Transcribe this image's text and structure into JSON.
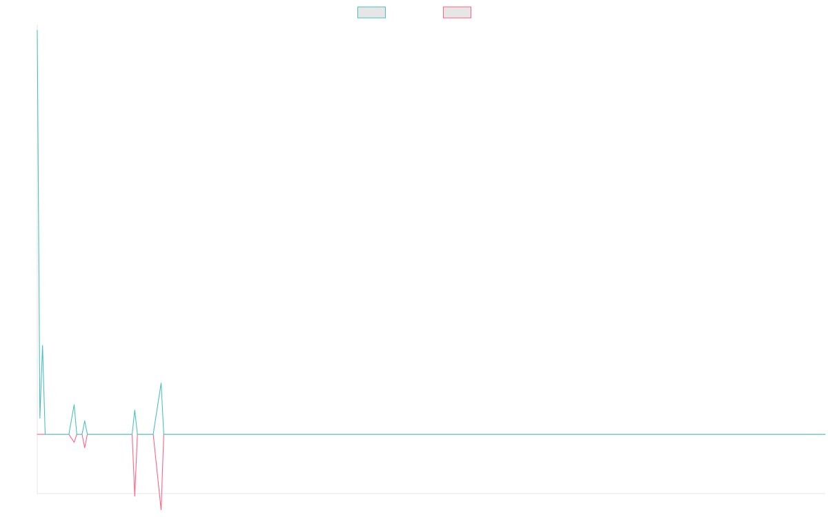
{
  "chart_data": {
    "type": "line",
    "title": "",
    "xlabel": "",
    "ylabel": "",
    "legend_position": "top-center",
    "grid": false,
    "x_count": 300,
    "ylim": [
      -22,
      152
    ],
    "series": [
      {
        "color": "#4bc0c0",
        "points": [
          [
            0,
            150
          ],
          [
            1,
            6
          ],
          [
            2,
            33
          ],
          [
            3,
            0
          ],
          [
            4,
            0
          ],
          [
            5,
            0
          ],
          [
            8,
            0
          ],
          [
            12,
            0
          ],
          [
            14,
            11
          ],
          [
            15,
            0
          ],
          [
            16,
            0
          ],
          [
            17,
            0
          ],
          [
            18,
            5
          ],
          [
            19,
            0
          ],
          [
            20,
            0
          ],
          [
            21,
            0
          ],
          [
            22,
            0
          ],
          [
            23,
            0
          ],
          [
            24,
            0
          ],
          [
            25,
            0
          ],
          [
            26,
            0
          ],
          [
            27,
            0
          ],
          [
            28,
            0
          ],
          [
            29,
            0
          ],
          [
            30,
            0
          ],
          [
            31,
            0
          ],
          [
            33,
            0
          ],
          [
            36,
            0
          ],
          [
            37,
            9
          ],
          [
            38,
            0
          ],
          [
            39,
            0
          ],
          [
            40,
            0
          ],
          [
            41,
            0
          ],
          [
            42,
            0
          ],
          [
            43,
            0
          ],
          [
            44,
            0
          ],
          [
            47,
            19
          ],
          [
            48,
            0
          ],
          [
            49,
            0
          ],
          [
            50,
            0
          ],
          [
            51,
            0
          ],
          [
            52,
            0
          ],
          [
            53,
            0
          ],
          [
            54,
            0
          ],
          [
            58,
            0
          ],
          [
            63,
            0
          ],
          [
            72,
            0
          ],
          [
            82,
            0
          ],
          [
            95,
            0
          ],
          [
            110,
            0
          ],
          [
            125,
            0
          ],
          [
            140,
            0
          ],
          [
            146,
            0
          ],
          [
            153,
            0
          ],
          [
            160,
            0
          ],
          [
            166,
            0
          ],
          [
            172,
            0
          ],
          [
            177,
            0
          ],
          [
            178,
            0
          ],
          [
            179,
            0
          ],
          [
            180,
            0
          ],
          [
            181,
            0
          ],
          [
            182,
            0
          ],
          [
            183,
            0
          ],
          [
            184,
            0
          ],
          [
            185,
            0
          ],
          [
            190,
            0
          ],
          [
            196,
            0
          ],
          [
            197,
            0
          ],
          [
            198,
            0
          ],
          [
            204,
            0
          ],
          [
            205,
            0
          ],
          [
            208,
            0
          ],
          [
            209,
            0
          ],
          [
            210,
            0
          ],
          [
            211,
            0
          ],
          [
            212,
            0
          ],
          [
            213,
            0
          ],
          [
            214,
            0
          ],
          [
            215,
            0
          ],
          [
            216,
            0
          ],
          [
            217,
            0
          ],
          [
            218,
            0
          ],
          [
            219,
            0
          ],
          [
            220,
            0
          ],
          [
            221,
            0
          ],
          [
            222,
            0
          ],
          [
            223,
            0
          ],
          [
            224,
            0
          ],
          [
            225,
            0
          ],
          [
            226,
            0
          ],
          [
            227,
            0
          ],
          [
            228,
            0
          ],
          [
            229,
            0
          ],
          [
            230,
            0
          ],
          [
            235,
            0
          ],
          [
            240,
            0
          ],
          [
            250,
            0
          ],
          [
            260,
            0
          ],
          [
            270,
            0
          ],
          [
            280,
            0
          ],
          [
            290,
            0
          ],
          [
            299,
            0
          ]
        ]
      },
      {
        "color": "#ff6384",
        "points": [
          [
            0,
            0
          ],
          [
            1,
            0
          ],
          [
            2,
            0
          ],
          [
            3,
            0
          ],
          [
            4,
            0
          ],
          [
            5,
            0
          ],
          [
            8,
            0
          ],
          [
            12,
            0
          ],
          [
            14,
            -3
          ],
          [
            15,
            0
          ],
          [
            16,
            0
          ],
          [
            17,
            0
          ],
          [
            18,
            -5
          ],
          [
            19,
            0
          ],
          [
            20,
            0
          ],
          [
            21,
            0
          ],
          [
            22,
            0
          ],
          [
            23,
            0
          ],
          [
            24,
            0
          ],
          [
            25,
            0
          ],
          [
            26,
            0
          ],
          [
            27,
            0
          ],
          [
            28,
            0
          ],
          [
            29,
            0
          ],
          [
            30,
            0
          ],
          [
            31,
            0
          ],
          [
            33,
            0
          ],
          [
            36,
            0
          ],
          [
            37,
            -23
          ],
          [
            38,
            0
          ],
          [
            39,
            0
          ],
          [
            40,
            0
          ],
          [
            41,
            0
          ],
          [
            42,
            0
          ],
          [
            43,
            0
          ],
          [
            44,
            0
          ],
          [
            47,
            -28
          ],
          [
            48,
            0
          ],
          [
            49,
            0
          ],
          [
            50,
            0
          ],
          [
            51,
            0
          ],
          [
            52,
            0
          ],
          [
            53,
            0
          ],
          [
            54,
            0
          ],
          [
            58,
            0
          ],
          [
            63,
            0
          ],
          [
            72,
            0
          ],
          [
            82,
            0
          ],
          [
            95,
            0
          ],
          [
            110,
            0
          ],
          [
            125,
            0
          ],
          [
            140,
            0
          ],
          [
            146,
            0
          ],
          [
            153,
            0
          ],
          [
            160,
            0
          ],
          [
            166,
            0
          ],
          [
            172,
            0
          ],
          [
            177,
            0
          ],
          [
            178,
            0
          ],
          [
            179,
            0
          ],
          [
            180,
            0
          ],
          [
            181,
            0
          ],
          [
            182,
            0
          ],
          [
            183,
            0
          ],
          [
            184,
            0
          ],
          [
            185,
            0
          ],
          [
            190,
            0
          ],
          [
            196,
            0
          ],
          [
            197,
            0
          ],
          [
            198,
            0
          ],
          [
            204,
            0
          ],
          [
            205,
            0
          ],
          [
            208,
            0
          ],
          [
            209,
            0
          ],
          [
            210,
            0
          ],
          [
            211,
            0
          ],
          [
            212,
            0
          ],
          [
            213,
            0
          ],
          [
            214,
            0
          ],
          [
            215,
            0
          ],
          [
            216,
            0
          ],
          [
            217,
            0
          ],
          [
            218,
            0
          ],
          [
            219,
            0
          ],
          [
            220,
            0
          ],
          [
            221,
            0
          ],
          [
            222,
            0
          ],
          [
            223,
            0
          ],
          [
            224,
            0
          ],
          [
            225,
            0
          ],
          [
            226,
            0
          ],
          [
            227,
            0
          ],
          [
            228,
            0
          ],
          [
            229,
            0
          ],
          [
            230,
            0
          ],
          [
            235,
            0
          ],
          [
            240,
            0
          ],
          [
            250,
            0
          ],
          [
            260,
            0
          ],
          [
            270,
            0
          ],
          [
            280,
            0
          ],
          [
            290,
            0
          ],
          [
            299,
            0
          ]
        ]
      }
    ]
  }
}
